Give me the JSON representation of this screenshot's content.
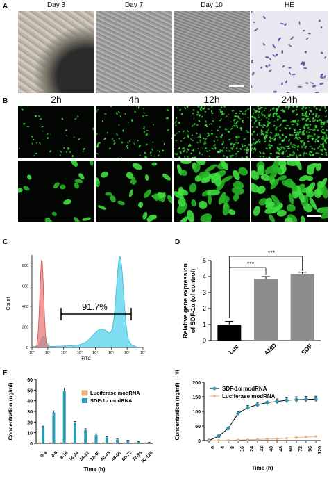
{
  "panels": {
    "A": {
      "label": "A",
      "titles": [
        "Day 3",
        "Day 7",
        "Day 10",
        "HE"
      ]
    },
    "B": {
      "label": "B",
      "titles": [
        "2h",
        "4h",
        "12h",
        "24h"
      ]
    },
    "C": {
      "label": "C",
      "xlabel": "FITC",
      "ylabel": "Count",
      "yticks": [
        "0",
        "200",
        "400",
        "600",
        "800"
      ],
      "xticks": [
        "10⁰",
        "10¹",
        "10²",
        "10³",
        "10⁴",
        "10⁵",
        "10⁶",
        "10⁷"
      ],
      "gate_text": "91.7%"
    },
    "D": {
      "label": "D",
      "ylabel1": "Relative gene expression",
      "ylabel2": "of SDF-1α (of control)",
      "sig1": "***",
      "sig2": "***"
    },
    "E": {
      "label": "E"
    },
    "F": {
      "label": "F"
    }
  },
  "colors": {
    "red_hist": "#e8706f",
    "cyan_hist": "#5ed4ee",
    "sdf": "#2e9bb5",
    "luc": "#f2b27a"
  },
  "chart_data": [
    {
      "type": "bar",
      "panel": "D",
      "title": "",
      "categories": [
        "Luc",
        "AMD",
        "SDF"
      ],
      "values": [
        1.0,
        3.85,
        4.15
      ],
      "errors": [
        0.2,
        0.15,
        0.12
      ],
      "colors": [
        "#000000",
        "#8c8c8c",
        "#8c8c8c"
      ],
      "ylabel": "Relative gene expression of SDF-1α (of control)",
      "ylim": [
        0,
        5
      ],
      "yticks": [
        0,
        1,
        2,
        3,
        4,
        5
      ]
    },
    {
      "type": "bar",
      "panel": "E",
      "title": "",
      "categories": [
        "0-4",
        "4-8",
        "8-16",
        "16-24",
        "24-32",
        "32-40",
        "40-48",
        "48-60",
        "60-72",
        "72-96",
        "96-120"
      ],
      "series": [
        {
          "name": "Luciferase modRNA",
          "values": [
            0.3,
            0.3,
            0.3,
            0.3,
            0.3,
            0.3,
            0.3,
            0.3,
            0.3,
            0.3,
            0.3
          ],
          "errors": [
            0.2,
            0.2,
            0.2,
            0.2,
            0.2,
            0.2,
            0.2,
            0.2,
            0.2,
            0.2,
            0.2
          ]
        },
        {
          "name": "SDF-1α modRNA",
          "values": [
            15,
            29,
            49,
            19,
            12.5,
            8,
            5.5,
            3.5,
            2.5,
            1.5,
            0.8
          ],
          "errors": [
            1.2,
            1.5,
            3,
            1.5,
            1.2,
            1,
            0.8,
            0.6,
            0.5,
            0.4,
            0.3
          ]
        }
      ],
      "xlabel": "Time (h)",
      "ylabel": "Concentration (ng/ml)",
      "ylim": [
        0,
        60
      ],
      "yticks": [
        0,
        10,
        20,
        30,
        40,
        50,
        60
      ],
      "legend": "top-right"
    },
    {
      "type": "line",
      "panel": "F",
      "title": "",
      "x": [
        0,
        4,
        8,
        16,
        24,
        32,
        40,
        48,
        60,
        72,
        96,
        120
      ],
      "series": [
        {
          "name": "SDF-1α modRNA",
          "values": [
            0,
            15,
            42,
            93,
            113,
            123,
            130,
            134,
            138,
            140,
            141,
            142
          ],
          "errors": [
            1,
            2,
            3,
            6,
            7,
            8,
            9,
            9,
            9,
            10,
            10,
            10
          ]
        },
        {
          "name": "Luciferase modRNA",
          "values": [
            0,
            0.5,
            1,
            2,
            3,
            4,
            5,
            6,
            8,
            10,
            12,
            14
          ],
          "errors": [
            0.3,
            0.3,
            0.5,
            0.5,
            0.5,
            0.5,
            0.6,
            0.6,
            0.8,
            0.8,
            1,
            1
          ]
        }
      ],
      "xlabel": "Time (h)",
      "ylabel": "Concentration (ng/ml)",
      "ylim": [
        0,
        200
      ],
      "yticks": [
        0,
        50,
        100,
        150,
        200
      ],
      "legend": "top-left"
    }
  ]
}
